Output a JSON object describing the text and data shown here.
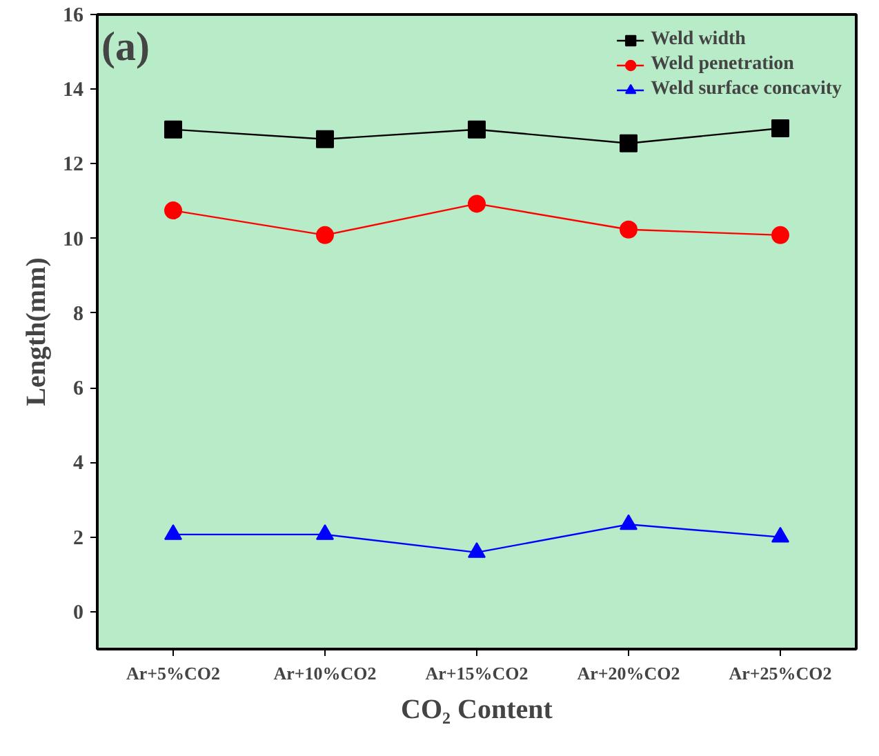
{
  "chart_data": {
    "type": "line",
    "annotations": [
      "(a)"
    ],
    "xlabel": "CO₂ Content",
    "ylabel": "Length(mm)",
    "categories": [
      "Ar+5%CO2",
      "Ar+10%CO2",
      "Ar+15%CO2",
      "Ar+20%CO2",
      "Ar+25%CO2"
    ],
    "series": [
      {
        "name": "Weld width",
        "color": "#000000",
        "marker": "square",
        "values": [
          12.92,
          12.66,
          12.92,
          12.55,
          12.95
        ]
      },
      {
        "name": "Weld penetration",
        "color": "#ff0000",
        "marker": "circle",
        "values": [
          10.75,
          10.09,
          10.93,
          10.24,
          10.09
        ]
      },
      {
        "name": "Weld surface concavity",
        "color": "#0000ff",
        "marker": "triangle",
        "values": [
          2.07,
          2.07,
          1.59,
          2.34,
          2.0
        ]
      }
    ],
    "ylim": [
      -1,
      16
    ],
    "yticks": [
      0,
      2,
      4,
      6,
      8,
      10,
      12,
      14,
      16
    ],
    "grid": false,
    "legend": "top right"
  }
}
